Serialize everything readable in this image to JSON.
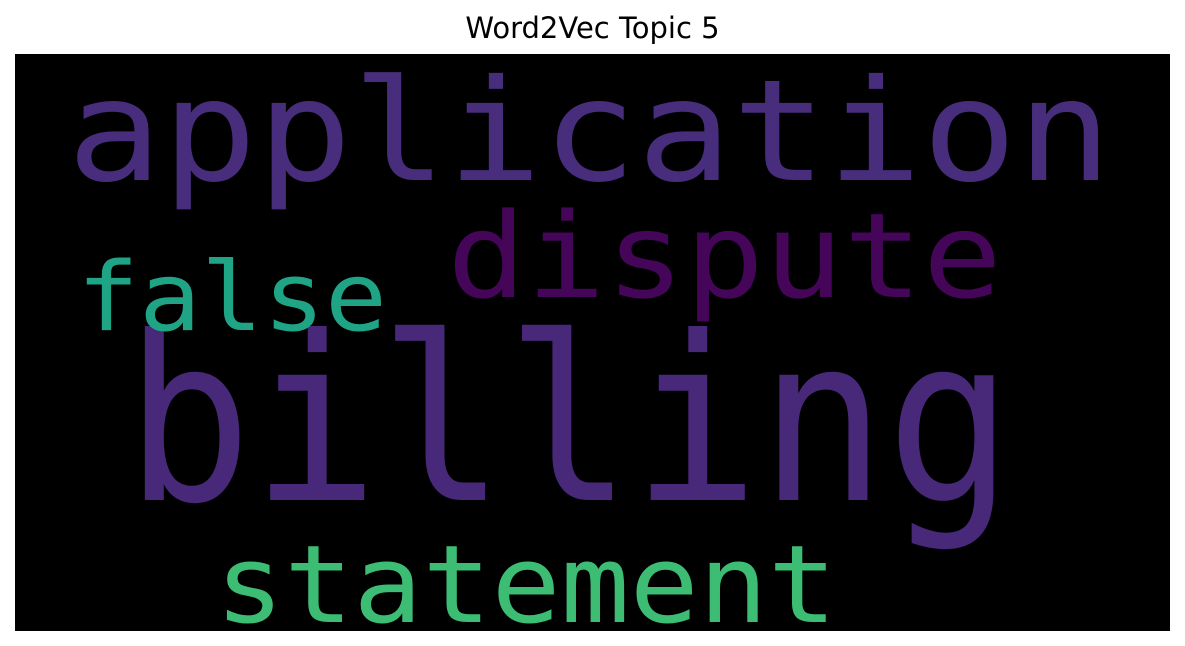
{
  "chart_data": {
    "type": "wordcloud",
    "title": "Word2Vec Topic 5",
    "background": "#000000",
    "words": [
      {
        "text": "billing",
        "weight": 1.0,
        "color": "#482878"
      },
      {
        "text": "application",
        "weight": 0.58,
        "color": "#472d7b"
      },
      {
        "text": "dispute",
        "weight": 0.47,
        "color": "#450559"
      },
      {
        "text": "statement",
        "weight": 0.42,
        "color": "#3dbc74"
      },
      {
        "text": "false",
        "weight": 0.36,
        "color": "#20a486"
      }
    ]
  }
}
